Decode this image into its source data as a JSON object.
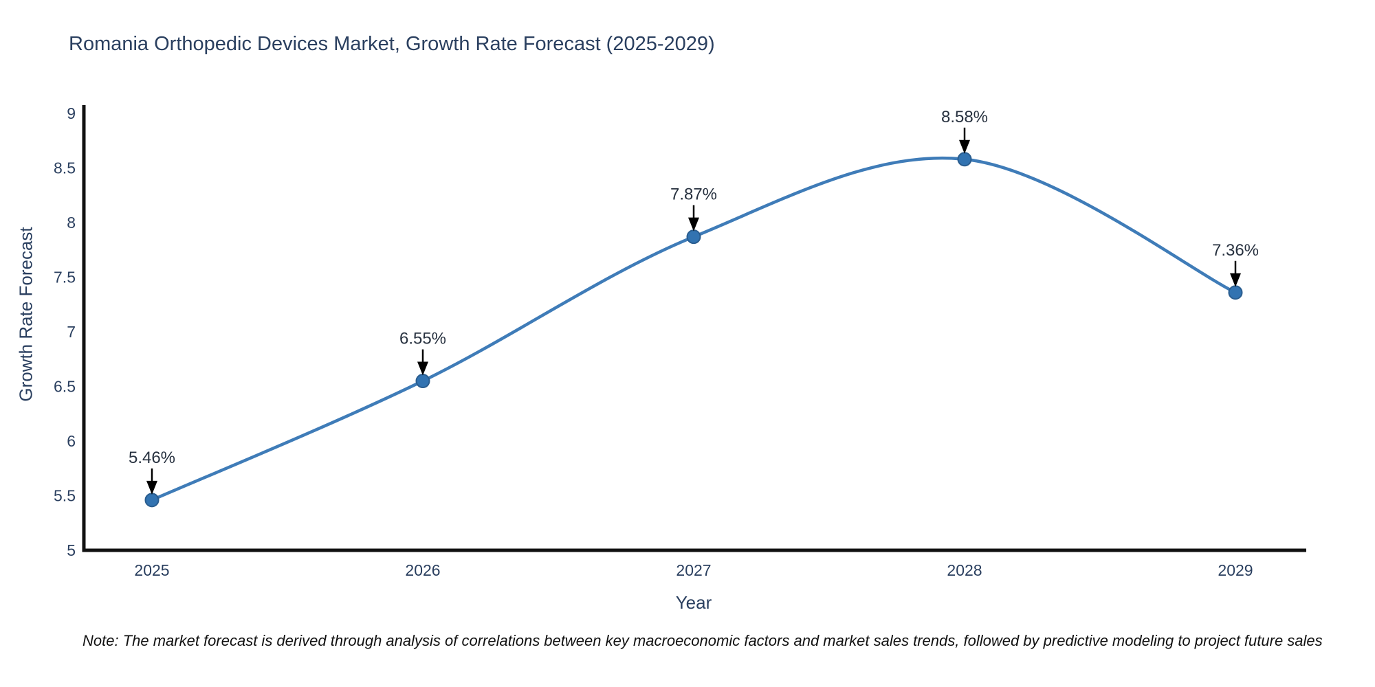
{
  "title": "Romania Orthopedic Devices Market, Growth Rate Forecast (2025-2029)",
  "note": "Note: The market forecast is derived through analysis of correlations between key macroeconomic factors and market sales trends, followed by predictive modeling to project future sales",
  "chart_data": {
    "type": "line",
    "title": "Romania Orthopedic Devices Market, Growth Rate Forecast (2025-2029)",
    "categories": [
      "2025",
      "2026",
      "2027",
      "2028",
      "2029"
    ],
    "values": [
      5.46,
      6.55,
      7.87,
      8.58,
      7.36
    ],
    "point_labels": [
      "5.46%",
      "6.55%",
      "7.87%",
      "8.58%",
      "7.36%"
    ],
    "xlabel": "Year",
    "ylabel": "Growth Rate Forecast",
    "ylim": [
      5,
      9
    ],
    "ytick_step": 0.5,
    "ytick_labels": [
      "5",
      "5.5",
      "6",
      "6.5",
      "7",
      "7.5",
      "8",
      "8.5",
      "9"
    ],
    "grid": false,
    "legend_position": "none",
    "line_shape": "spline",
    "annotation_arrows": true,
    "colors": {
      "line": "#3f7cb8",
      "marker_fill": "#3273b1",
      "marker_stroke": "#2a5d8f",
      "axis_line": "#111111",
      "tick_text": "#2a3f5f",
      "annotation": "#27313f",
      "arrow": "#000000",
      "background": "#ffffff",
      "title_text": "#2a3f5f"
    }
  }
}
